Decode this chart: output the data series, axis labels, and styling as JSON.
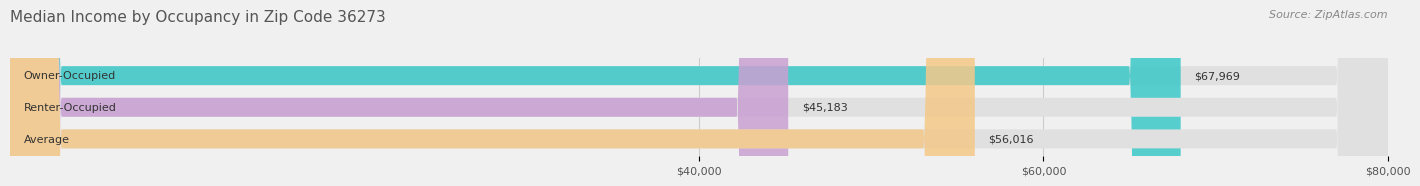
{
  "title": "Median Income by Occupancy in Zip Code 36273",
  "source": "Source: ZipAtlas.com",
  "categories": [
    "Owner-Occupied",
    "Renter-Occupied",
    "Average"
  ],
  "values": [
    67969,
    45183,
    56016
  ],
  "bar_colors": [
    "#3cc8c8",
    "#c8a0d2",
    "#f5c888"
  ],
  "bar_labels": [
    "$67,969",
    "$45,183",
    "$56,016"
  ],
  "xmin": 0,
  "xmax": 80000,
  "xticks": [
    40000,
    60000,
    80000
  ],
  "xticklabels": [
    "$40,000",
    "$60,000",
    "$80,000"
  ],
  "background_color": "#f0f0f0",
  "bar_bg_color": "#e0e0e0",
  "title_fontsize": 11,
  "source_fontsize": 8,
  "label_fontsize": 8,
  "tick_fontsize": 8
}
